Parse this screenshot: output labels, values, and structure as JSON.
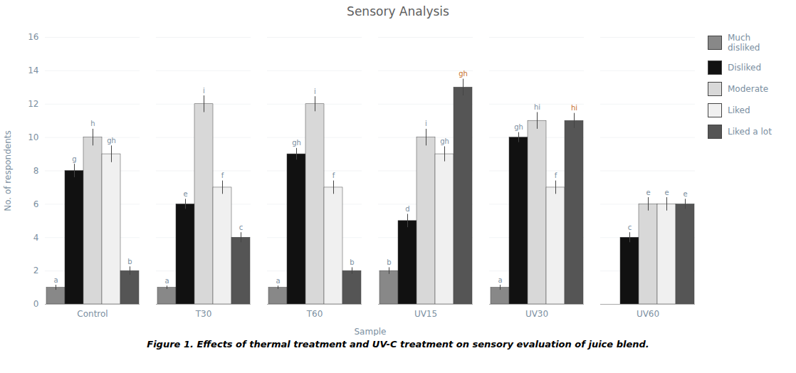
{
  "chart_data": {
    "type": "bar",
    "title": "Sensory Analysis",
    "xlabel": "Sample",
    "ylabel": "No. of respondents",
    "caption": "Figure 1. Effects of thermal treatment and UV-C treatment on sensory evaluation of juice blend.",
    "categories": [
      "Control",
      "T30",
      "T60",
      "UV15",
      "UV30",
      "UV60"
    ],
    "series": [
      {
        "name": "Much\ndisliked",
        "color": "#888888",
        "values": [
          1,
          1,
          1,
          2,
          1,
          0
        ],
        "errors": [
          0.15,
          0.1,
          0.1,
          0.2,
          0.15,
          0.0
        ],
        "letters": [
          "a",
          "a",
          "a",
          "b",
          "a",
          null
        ],
        "letter_colors": [
          "#7B8FA1",
          "#7B8FA1",
          "#7B8FA1",
          "#7B8FA1",
          "#7B8FA1",
          "#7B8FA1"
        ]
      },
      {
        "name": "Disliked",
        "color": "#111111",
        "values": [
          8,
          6,
          9,
          5,
          10,
          4
        ],
        "errors": [
          0.4,
          0.3,
          0.35,
          0.4,
          0.3,
          0.3
        ],
        "letters": [
          "g",
          "e",
          "gh",
          "d",
          "gh",
          "c"
        ],
        "letter_colors": [
          "#7B8FA1",
          "#7B8FA1",
          "#7B8FA1",
          "#7B8FA1",
          "#7B8FA1",
          "#7B8FA1"
        ]
      },
      {
        "name": "Moderate",
        "color": "#d8d8d8",
        "values": [
          10,
          12,
          12,
          10,
          11,
          6
        ],
        "errors": [
          0.5,
          0.5,
          0.45,
          0.5,
          0.5,
          0.4
        ],
        "letters": [
          "h",
          "i",
          "i",
          "i",
          "hi",
          "e"
        ],
        "letter_colors": [
          "#7B8FA1",
          "#7B8FA1",
          "#7B8FA1",
          "#7B8FA1",
          "#7B8FA1",
          "#7B8FA1"
        ]
      },
      {
        "name": "Liked",
        "color": "#f0f0f0",
        "values": [
          9,
          7,
          7,
          9,
          7,
          6
        ],
        "errors": [
          0.5,
          0.4,
          0.4,
          0.45,
          0.4,
          0.4
        ],
        "letters": [
          "gh",
          "f",
          "f",
          "gh",
          "f",
          "e"
        ],
        "letter_colors": [
          "#7B8FA1",
          "#7B8FA1",
          "#7B8FA1",
          "#7B8FA1",
          "#7B8FA1",
          "#7B8FA1"
        ]
      },
      {
        "name": "Liked a lot",
        "color": "#555555",
        "values": [
          2,
          4,
          2,
          13,
          11,
          6
        ],
        "errors": [
          0.25,
          0.3,
          0.2,
          0.5,
          0.45,
          0.3
        ],
        "letters": [
          "b",
          "c",
          "b",
          "gh",
          "hi",
          "e"
        ],
        "letter_colors": [
          "#7B8FA1",
          "#7B8FA1",
          "#7B8FA1",
          "#C8702A",
          "#C8702A",
          "#7B8FA1"
        ]
      }
    ],
    "ylim": [
      0,
      16
    ],
    "yticks": [
      0,
      2,
      4,
      6,
      8,
      10,
      12,
      14,
      16
    ],
    "grid": true,
    "legend": "right"
  }
}
